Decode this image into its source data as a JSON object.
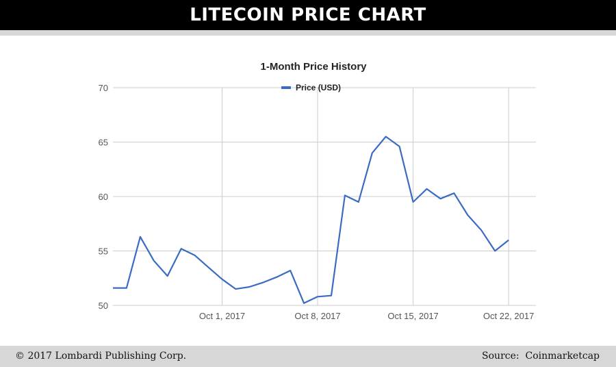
{
  "header": {
    "title": "LITECOIN PRICE CHART"
  },
  "footer": {
    "copyright": "© 2017 Lombardi Publishing Corp.",
    "source": "Source:  Coinmarketcap"
  },
  "colors": {
    "line": "#3a6bc4",
    "grid": "#cccccc",
    "axis_text": "#555555",
    "banner_bg": "#000000",
    "band": "#d7d7d7"
  },
  "chart_data": {
    "type": "line",
    "title": "1-Month Price History",
    "xlabel": "",
    "ylabel": "",
    "ylim": [
      50,
      70
    ],
    "yticks": [
      50,
      55,
      60,
      65,
      70
    ],
    "xlim": [
      "2017-09-23",
      "2017-10-24"
    ],
    "xticks": [
      {
        "date": "2017-10-01",
        "label": "Oct 1, 2017"
      },
      {
        "date": "2017-10-08",
        "label": "Oct 8, 2017"
      },
      {
        "date": "2017-10-15",
        "label": "Oct 15, 2017"
      },
      {
        "date": "2017-10-22",
        "label": "Oct 22, 2017"
      }
    ],
    "grid": true,
    "legend_position": "top-center",
    "series": [
      {
        "name": "Price (USD)",
        "x": [
          "2017-09-23",
          "2017-09-24",
          "2017-09-25",
          "2017-09-26",
          "2017-09-27",
          "2017-09-28",
          "2017-09-29",
          "2017-09-30",
          "2017-10-01",
          "2017-10-02",
          "2017-10-03",
          "2017-10-04",
          "2017-10-05",
          "2017-10-06",
          "2017-10-07",
          "2017-10-08",
          "2017-10-09",
          "2017-10-10",
          "2017-10-11",
          "2017-10-12",
          "2017-10-13",
          "2017-10-14",
          "2017-10-15",
          "2017-10-16",
          "2017-10-17",
          "2017-10-18",
          "2017-10-19",
          "2017-10-20",
          "2017-10-21",
          "2017-10-22",
          "2017-10-23",
          "2017-10-24"
        ],
        "values": [
          51.6,
          51.6,
          56.3,
          54.1,
          52.7,
          55.2,
          54.6,
          53.5,
          52.4,
          51.5,
          51.7,
          52.1,
          52.6,
          53.2,
          50.2,
          50.8,
          50.9,
          60.1,
          59.5,
          64.0,
          65.5,
          64.6,
          59.5,
          60.7,
          59.8,
          60.3,
          58.3,
          56.9,
          55.0,
          56.0,
          null,
          null
        ]
      }
    ]
  }
}
